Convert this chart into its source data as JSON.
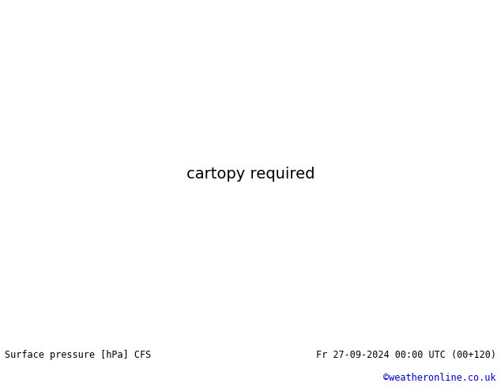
{
  "title_left": "Surface pressure [hPa] CFS",
  "title_right": "Fr 27-09-2024 00:00 UTC (00+120)",
  "credit": "©weatheronline.co.uk",
  "credit_color": "#0000cc",
  "bg_color": "#ffffff",
  "ocean_color": "#d8e8f0",
  "land_base_color": "#c8c8c8",
  "land_green_color": "#aaddaa",
  "text_color": "#000000",
  "contour_black_color": "#000000",
  "contour_red_color": "#cc0000",
  "contour_blue_color": "#0000cc",
  "pressure_base": 1013,
  "pressure_interval": 4,
  "pressure_min": 960,
  "pressure_max": 1040,
  "fig_width": 6.34,
  "fig_height": 4.9,
  "dpi": 100,
  "font_size_title": 8.5
}
